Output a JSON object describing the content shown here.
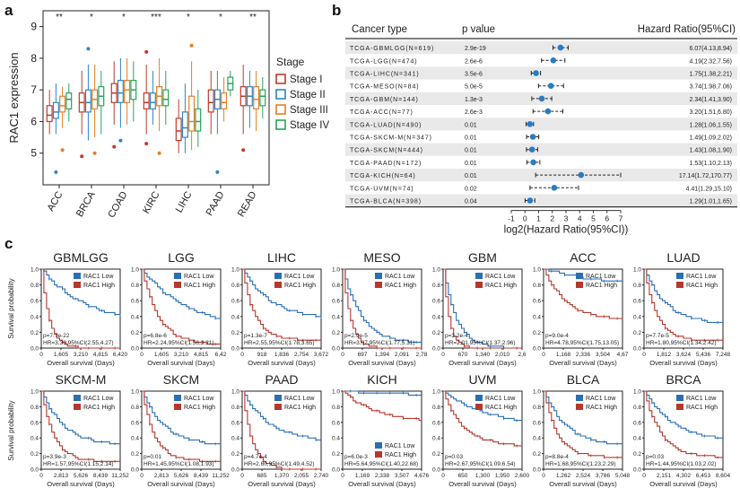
{
  "panels": {
    "a": "a",
    "b": "b",
    "c": "c"
  },
  "colors": {
    "stage_i": "#c0392b",
    "stage_ii": "#2e86c1",
    "stage_iii": "#e67e22",
    "stage_iv": "#27a35a",
    "km_low": "#2a6fb3",
    "km_high": "#b5382e",
    "forest_point": "#2a7bbf"
  },
  "chart_data": [
    {
      "type": "box",
      "ylabel": "RAC1 expression",
      "ylim": [
        4,
        9.5
      ],
      "yticks": [
        5,
        6,
        7,
        8,
        9
      ],
      "categories": [
        "ACC",
        "BRCA",
        "COAD",
        "KIRC",
        "LIHC",
        "PAAD",
        "READ"
      ],
      "significance": [
        "**",
        "*",
        "*",
        "***",
        "*",
        "*",
        "**"
      ],
      "legend": {
        "title": "Stage",
        "entries": [
          "Stage I",
          "Stage II",
          "Stage III",
          "Stage IV"
        ],
        "placement": "right"
      },
      "series": [
        {
          "name": "Stage I",
          "boxes": [
            {
              "min": 5.6,
              "q1": 6.0,
              "median": 6.2,
              "q3": 6.5,
              "max": 7.0,
              "outliers": []
            },
            {
              "min": 5.6,
              "q1": 6.3,
              "median": 6.6,
              "q3": 6.9,
              "max": 7.6,
              "outliers": [
                4.9
              ]
            },
            {
              "min": 5.9,
              "q1": 6.6,
              "median": 6.9,
              "q3": 7.2,
              "max": 7.9,
              "outliers": [
                5.2
              ]
            },
            {
              "min": 5.6,
              "q1": 6.4,
              "median": 6.6,
              "q3": 6.9,
              "max": 7.8,
              "outliers": [
                5.3,
                8.2
              ]
            },
            {
              "min": 5.0,
              "q1": 5.4,
              "median": 5.7,
              "q3": 6.1,
              "max": 6.7,
              "outliers": []
            },
            {
              "min": 5.6,
              "q1": 6.3,
              "median": 6.6,
              "q3": 7.0,
              "max": 7.6,
              "outliers": []
            },
            {
              "min": 5.6,
              "q1": 6.5,
              "median": 6.8,
              "q3": 7.1,
              "max": 7.8,
              "outliers": [
                5.1
              ]
            }
          ]
        },
        {
          "name": "Stage II",
          "boxes": [
            {
              "min": 5.6,
              "q1": 6.1,
              "median": 6.3,
              "q3": 6.6,
              "max": 7.2,
              "outliers": [
                4.4
              ]
            },
            {
              "min": 5.4,
              "q1": 6.3,
              "median": 6.6,
              "q3": 7.0,
              "max": 7.8,
              "outliers": [
                8.3
              ]
            },
            {
              "min": 5.8,
              "q1": 6.6,
              "median": 6.9,
              "q3": 7.3,
              "max": 8.0,
              "outliers": [
                5.4
              ]
            },
            {
              "min": 5.9,
              "q1": 6.4,
              "median": 6.6,
              "q3": 6.9,
              "max": 7.6,
              "outliers": []
            },
            {
              "min": 5.0,
              "q1": 5.5,
              "median": 5.8,
              "q3": 6.3,
              "max": 7.2,
              "outliers": []
            },
            {
              "min": 5.6,
              "q1": 6.4,
              "median": 6.7,
              "q3": 7.0,
              "max": 7.6,
              "outliers": [
                4.4
              ]
            },
            {
              "min": 5.8,
              "q1": 6.5,
              "median": 6.8,
              "q3": 7.1,
              "max": 7.6,
              "outliers": []
            }
          ]
        },
        {
          "name": "Stage III",
          "boxes": [
            {
              "min": 5.8,
              "q1": 6.3,
              "median": 6.5,
              "q3": 6.8,
              "max": 7.1,
              "outliers": [
                5.1
              ]
            },
            {
              "min": 5.5,
              "q1": 6.4,
              "median": 6.7,
              "q3": 7.0,
              "max": 7.8,
              "outliers": [
                5.0
              ]
            },
            {
              "min": 5.9,
              "q1": 6.6,
              "median": 7.0,
              "q3": 7.3,
              "max": 8.0,
              "outliers": []
            },
            {
              "min": 5.7,
              "q1": 6.5,
              "median": 6.8,
              "q3": 7.1,
              "max": 8.0,
              "outliers": [
                5.0
              ]
            },
            {
              "min": 5.1,
              "q1": 5.7,
              "median": 6.0,
              "q3": 6.8,
              "max": 7.9,
              "outliers": [
                8.4
              ]
            },
            {
              "min": 6.0,
              "q1": 6.4,
              "median": 6.6,
              "q3": 6.9,
              "max": 7.4,
              "outliers": []
            },
            {
              "min": 5.7,
              "q1": 6.4,
              "median": 6.7,
              "q3": 7.1,
              "max": 7.6,
              "outliers": []
            }
          ]
        },
        {
          "name": "Stage IV",
          "boxes": [
            {
              "min": 6.0,
              "q1": 6.4,
              "median": 6.7,
              "q3": 6.9,
              "max": 7.2,
              "outliers": []
            },
            {
              "min": 5.6,
              "q1": 6.5,
              "median": 6.8,
              "q3": 7.1,
              "max": 7.6,
              "outliers": []
            },
            {
              "min": 6.0,
              "q1": 6.7,
              "median": 7.0,
              "q3": 7.3,
              "max": 7.9,
              "outliers": []
            },
            {
              "min": 5.9,
              "q1": 6.5,
              "median": 6.7,
              "q3": 7.0,
              "max": 7.6,
              "outliers": []
            },
            {
              "min": 5.2,
              "q1": 5.7,
              "median": 6.0,
              "q3": 6.4,
              "max": 7.0,
              "outliers": []
            },
            {
              "min": 6.8,
              "q1": 7.0,
              "median": 7.2,
              "q3": 7.4,
              "max": 7.6,
              "outliers": []
            },
            {
              "min": 6.1,
              "q1": 6.5,
              "median": 6.8,
              "q3": 7.0,
              "max": 7.4,
              "outliers": []
            }
          ]
        }
      ]
    },
    {
      "type": "forest",
      "headers": {
        "cancer": "Cancer type",
        "p": "p value",
        "hr": "Hazard Ratio(95%CI)"
      },
      "xlabel": "log2(Hazard Ratio(95%CI))",
      "xticks": [
        -1,
        0,
        1,
        2,
        3,
        4,
        5,
        6,
        7
      ],
      "xlim": [
        -1,
        7
      ],
      "rows": [
        {
          "cancer": "TCGA-GBMLGG(N=619)",
          "p": "2.9e-19",
          "hr_text": "6.07(4.13,8.94)",
          "log2hr": 2.6,
          "lo": 2.05,
          "hi": 3.16
        },
        {
          "cancer": "TCGA-LGG(N=474)",
          "p": "2.6e-6",
          "hr_text": "4.19(2.32,7.56)",
          "log2hr": 2.07,
          "lo": 1.21,
          "hi": 2.92
        },
        {
          "cancer": "TCGA-LIHC(N=341)",
          "p": "3.5e-6",
          "hr_text": "1.75(1.38,2.21)",
          "log2hr": 0.81,
          "lo": 0.46,
          "hi": 1.14
        },
        {
          "cancer": "TCGA-MESO(N=84)",
          "p": "5.0e-5",
          "hr_text": "3.74(1.98,7.06)",
          "log2hr": 1.9,
          "lo": 0.99,
          "hi": 2.82
        },
        {
          "cancer": "TCGA-GBM(N=144)",
          "p": "1.3e-3",
          "hr_text": "2.34(1.41,3.90)",
          "log2hr": 1.23,
          "lo": 0.5,
          "hi": 1.96
        },
        {
          "cancer": "TCGA-ACC(N=77)",
          "p": "2.6e-3",
          "hr_text": "3.20(1.51,6.80)",
          "log2hr": 1.68,
          "lo": 0.59,
          "hi": 2.77
        },
        {
          "cancer": "TCGA-LUAD(N=490)",
          "p": "0.01",
          "hr_text": "1.28(1.06,1.55)",
          "log2hr": 0.36,
          "lo": 0.08,
          "hi": 0.63
        },
        {
          "cancer": "TCGA-SKCM-M(N=347)",
          "p": "0.01",
          "hr_text": "1.49(1.09,2.02)",
          "log2hr": 0.58,
          "lo": 0.12,
          "hi": 1.01
        },
        {
          "cancer": "TCGA-SKCM(N=444)",
          "p": "0.01",
          "hr_text": "1.43(1.08,1.90)",
          "log2hr": 0.52,
          "lo": 0.11,
          "hi": 0.93
        },
        {
          "cancer": "TCGA-PAAD(N=172)",
          "p": "0.01",
          "hr_text": "1.53(1.10,2.13)",
          "log2hr": 0.61,
          "lo": 0.14,
          "hi": 1.09
        },
        {
          "cancer": "TCGA-KICH(N=64)",
          "p": "0.01",
          "hr_text": "17.14(1.72,170.77)",
          "log2hr": 4.1,
          "lo": 0.78,
          "hi": 7.0
        },
        {
          "cancer": "TCGA-UVM(N=74)",
          "p": "0.02",
          "hr_text": "4.41(1.29,15.10)",
          "log2hr": 2.14,
          "lo": 0.37,
          "hi": 3.92
        },
        {
          "cancer": "TCGA-BLCA(N=398)",
          "p": "0.04",
          "hr_text": "1.29(1.01,1.65)",
          "log2hr": 0.37,
          "lo": 0.01,
          "hi": 0.72
        }
      ]
    },
    {
      "type": "line",
      "subtype": "kaplan-meier",
      "ylabel": "Survival probability",
      "xlabel": "Overall survival (Days)",
      "yticks": [
        "0.0",
        "0.2",
        "0.4",
        "0.6",
        "0.8",
        "1.0"
      ],
      "legend": [
        "RAC1 Low",
        "RAC1 High"
      ],
      "plots": [
        {
          "title": "GBMLGG",
          "xticks": [
            "0",
            "1,605",
            "3,210",
            "4,815",
            "6,420"
          ],
          "p": "p=7.7e-22",
          "hr": "HR=3.30,95%CI(2.55,4.27)",
          "low_end": 0.3,
          "high_end": 0.0,
          "low_rate": 0.6,
          "high_rate": 3.5,
          "legend_pos": "top"
        },
        {
          "title": "LGG",
          "xticks": [
            "0",
            "1,605",
            "3,210",
            "4,815",
            "6,42"
          ],
          "p": "p=6.8e-6",
          "hr": "HR=2.24,95%CI(1.56,3.21)",
          "low_end": 0.25,
          "high_end": 0.05,
          "low_rate": 0.6,
          "high_rate": 1.6,
          "legend_pos": "top"
        },
        {
          "title": "LIHC",
          "xticks": [
            "0",
            "918",
            "1,836",
            "2,754",
            "3,672"
          ],
          "p": "p=1.3e-7",
          "hr": "HR=2.55,95%CI(1.78,3.65)",
          "low_end": 0.35,
          "high_end": 0.1,
          "low_rate": 0.9,
          "high_rate": 2.2,
          "legend_pos": "top"
        },
        {
          "title": "MESO",
          "xticks": [
            "0",
            "697",
            "1,394",
            "2,091",
            "2,78"
          ],
          "p": "p=2.9e-5",
          "hr": "HR=3.07,95%CI(1.77,5.31)",
          "low_end": 0.05,
          "high_end": 0.0,
          "low_rate": 1.4,
          "high_rate": 3.5,
          "legend_pos": "top"
        },
        {
          "title": "GBM",
          "xticks": [
            "0",
            "670",
            "1,340",
            "2,010",
            "2,6"
          ],
          "p": "p=3.2e-4",
          "hr": "HR=2.01,95%CI(1.37,2.96)",
          "low_end": 0.0,
          "high_end": 0.0,
          "low_rate": 2.0,
          "high_rate": 4.5,
          "legend_pos": "top"
        },
        {
          "title": "ACC",
          "xticks": [
            "0",
            "1,168",
            "2,336",
            "3,504",
            "4,67"
          ],
          "p": "p=9.0e-4",
          "hr": "HR=4.78,95%CI(1.75,13.05)",
          "low_end": 0.8,
          "high_end": 0.35,
          "low_rate": 0.5,
          "high_rate": 1.2,
          "legend_pos": "top"
        },
        {
          "title": "LUAD",
          "xticks": [
            "0",
            "1,812",
            "3,624",
            "5,436",
            "7,248"
          ],
          "p": "p=7.7e-5",
          "hr": "HR=1.80,95%CI(1.34,2.42)",
          "low_end": 0.3,
          "high_end": 0.1,
          "low_rate": 1.2,
          "high_rate": 2.2,
          "legend_pos": "top"
        },
        {
          "title": "SKCM-M",
          "xticks": [
            "0",
            "2,813",
            "5,626",
            "8,439",
            "11,252"
          ],
          "p": "p=3.9e-3",
          "hr": "HR=1.57,95%CI(1.15,2.14)",
          "low_end": 0.3,
          "high_end": 0.1,
          "low_rate": 1.2,
          "high_rate": 2.2,
          "legend_pos": "top"
        },
        {
          "title": "SKCM",
          "xticks": [
            "0",
            "2,813",
            "5,626",
            "8,439",
            "11,252"
          ],
          "p": "p=0.01",
          "hr": "HR=1.45,95%CI(1.08,1.93)",
          "low_end": 0.3,
          "high_end": 0.1,
          "low_rate": 1.2,
          "high_rate": 2.1,
          "legend_pos": "top"
        },
        {
          "title": "PAAD",
          "xticks": [
            "0",
            "685",
            "1,370",
            "2,055",
            "2,740"
          ],
          "p": "p=4.7e-4",
          "hr": "HR=2.60,95%CI(1.49,4.52)",
          "low_end": 0.35,
          "high_end": 0.0,
          "low_rate": 1.0,
          "high_rate": 2.8,
          "legend_pos": "top"
        },
        {
          "title": "KICH",
          "xticks": [
            "0",
            "1,169",
            "2,338",
            "3,507",
            "4,676"
          ],
          "p": "p=6.0e-3",
          "hr": "HR=5.64,95%CI(1.40,22.68)",
          "low_end": 0.9,
          "high_end": 0.6,
          "low_rate": 0.15,
          "high_rate": 0.8,
          "legend_pos": "bottom"
        },
        {
          "title": "UVM",
          "xticks": [
            "0",
            "650",
            "1,300",
            "1,950",
            "2,600"
          ],
          "p": "p=0.03",
          "hr": "HR=2.67,95%CI(1.09,6.54)",
          "low_end": 0.55,
          "high_end": 0.3,
          "low_rate": 0.6,
          "high_rate": 1.4,
          "legend_pos": "top"
        },
        {
          "title": "BLCA",
          "xticks": [
            "0",
            "1,262",
            "2,524",
            "3,786",
            "5,048"
          ],
          "p": "p=8.8e-4",
          "hr": "HR=1.68,95%CI(1.23,2.29)",
          "low_end": 0.3,
          "high_end": 0.15,
          "low_rate": 1.2,
          "high_rate": 2.0,
          "legend_pos": "top"
        },
        {
          "title": "BRCA",
          "xticks": [
            "0",
            "2,151",
            "4,302",
            "6,453",
            "8,604"
          ],
          "p": "p=0.03",
          "hr": "HR=1.44,95%CI(1.03,2.02)",
          "low_end": 0.35,
          "high_end": 0.15,
          "low_rate": 0.9,
          "high_rate": 1.6,
          "legend_pos": "top"
        }
      ]
    }
  ]
}
